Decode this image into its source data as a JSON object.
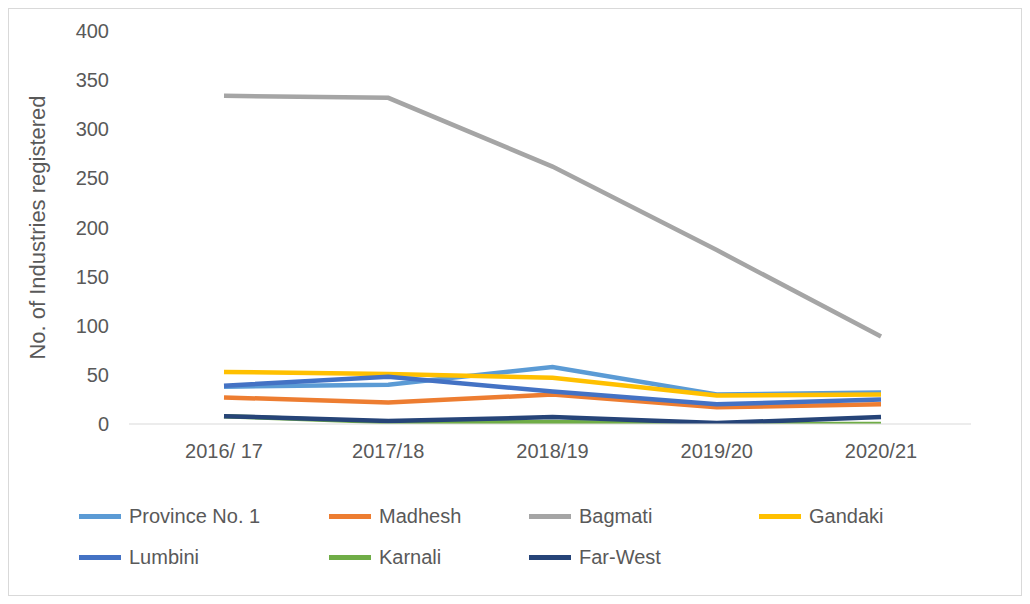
{
  "chart_data": {
    "type": "line",
    "y_label": "No. of Industries registered",
    "categories": [
      "2016/ 17",
      "2017/18",
      "2018/19",
      "2019/20",
      "2020/21"
    ],
    "series": [
      {
        "name": "Province No. 1",
        "color": "#5b9bd5",
        "values": [
          38,
          40,
          58,
          30,
          32
        ]
      },
      {
        "name": "Madhesh",
        "color": "#ed7d31",
        "values": [
          27,
          22,
          30,
          17,
          20
        ]
      },
      {
        "name": "Bagmati",
        "color": "#a5a5a5",
        "values": [
          334,
          332,
          262,
          177,
          89
        ]
      },
      {
        "name": "Gandaki",
        "color": "#ffc000",
        "values": [
          53,
          51,
          47,
          29,
          30
        ]
      },
      {
        "name": "Lumbini",
        "color": "#4472c4",
        "values": [
          39,
          48,
          33,
          20,
          25
        ]
      },
      {
        "name": "Karnali",
        "color": "#70ad47",
        "values": [
          8,
          2,
          2,
          0,
          0
        ]
      },
      {
        "name": "Far-West",
        "color": "#264478",
        "values": [
          8,
          3,
          7,
          1,
          7
        ]
      }
    ],
    "ylim": [
      0,
      400
    ],
    "yticks": [
      0,
      50,
      100,
      150,
      200,
      250,
      300,
      350,
      400
    ],
    "grid": false,
    "legend": "bottom"
  }
}
